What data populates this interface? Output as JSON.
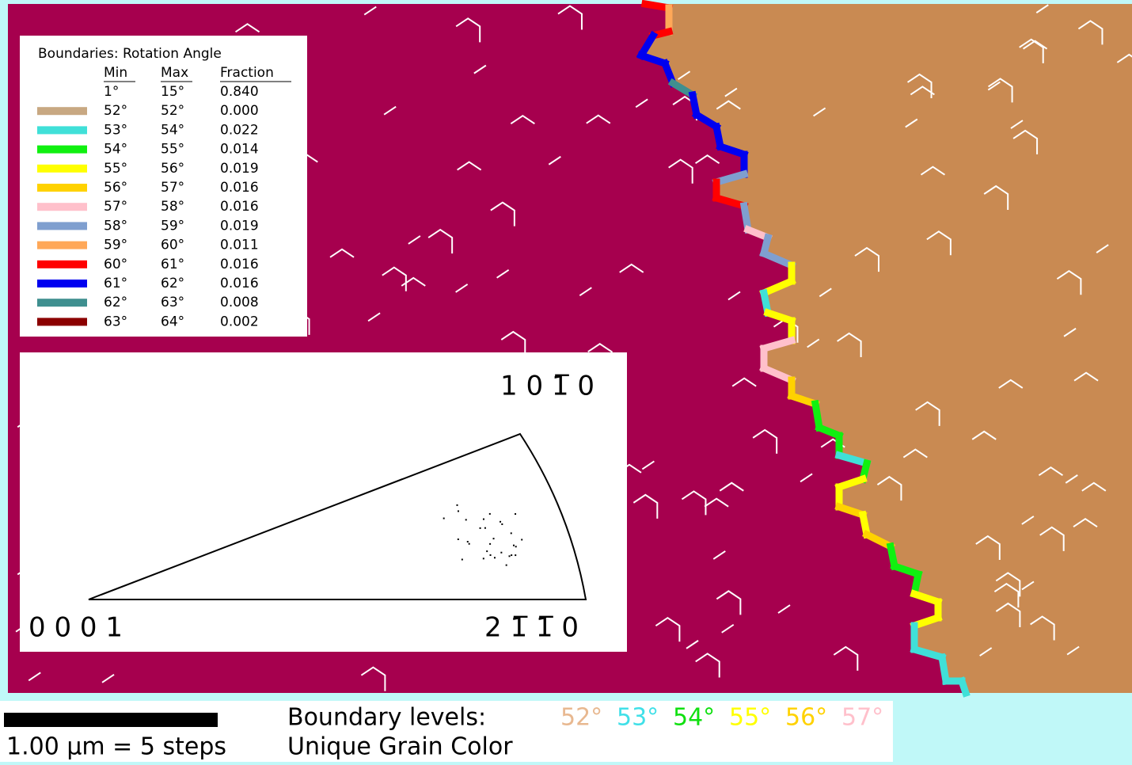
{
  "legend": {
    "title": "Boundaries: Rotation Angle",
    "headers": [
      "Min",
      "Max",
      "Fraction"
    ],
    "rows": [
      {
        "min": "1°",
        "max": "15°",
        "fraction": "0.840"
      },
      {
        "color": "#c8a882",
        "min": "52°",
        "max": "52°",
        "fraction": "0.000"
      },
      {
        "color": "#40e0d8",
        "min": "53°",
        "max": "54°",
        "fraction": "0.022"
      },
      {
        "color": "#10f010",
        "min": "54°",
        "max": "55°",
        "fraction": "0.014"
      },
      {
        "color": "#ffff00",
        "min": "55°",
        "max": "56°",
        "fraction": "0.019"
      },
      {
        "color": "#ffd200",
        "min": "56°",
        "max": "57°",
        "fraction": "0.016"
      },
      {
        "color": "#ffc0cb",
        "min": "57°",
        "max": "58°",
        "fraction": "0.016"
      },
      {
        "color": "#7f9fcf",
        "min": "58°",
        "max": "59°",
        "fraction": "0.019"
      },
      {
        "color": "#ffa858",
        "min": "59°",
        "max": "60°",
        "fraction": "0.011"
      },
      {
        "color": "#ff0000",
        "min": "60°",
        "max": "61°",
        "fraction": "0.016"
      },
      {
        "color": "#0000f0",
        "min": "61°",
        "max": "62°",
        "fraction": "0.016"
      },
      {
        "color": "#3f8f8f",
        "min": "62°",
        "max": "63°",
        "fraction": "0.008"
      },
      {
        "color": "#8b0000",
        "min": "63°",
        "max": "64°",
        "fraction": "0.002"
      }
    ]
  },
  "pole_figure": {
    "top": "1 0 1̅ 0",
    "left": "0 0 0 1",
    "right": "2 1̅ 1̅ 0"
  },
  "footer": {
    "scale_bar": "1.00 µm = 5 steps",
    "levels_label": "Boundary levels:",
    "map_label": "Unique Grain Color",
    "levels": [
      {
        "label": "52°",
        "color": "#e8b890"
      },
      {
        "label": "53°",
        "color": "#40e0e8"
      },
      {
        "label": "54°",
        "color": "#10e010"
      },
      {
        "label": "55°",
        "color": "#ffff00"
      },
      {
        "label": "56°",
        "color": "#ffd200"
      },
      {
        "label": "57°",
        "color": "#ffc0cb"
      }
    ]
  }
}
